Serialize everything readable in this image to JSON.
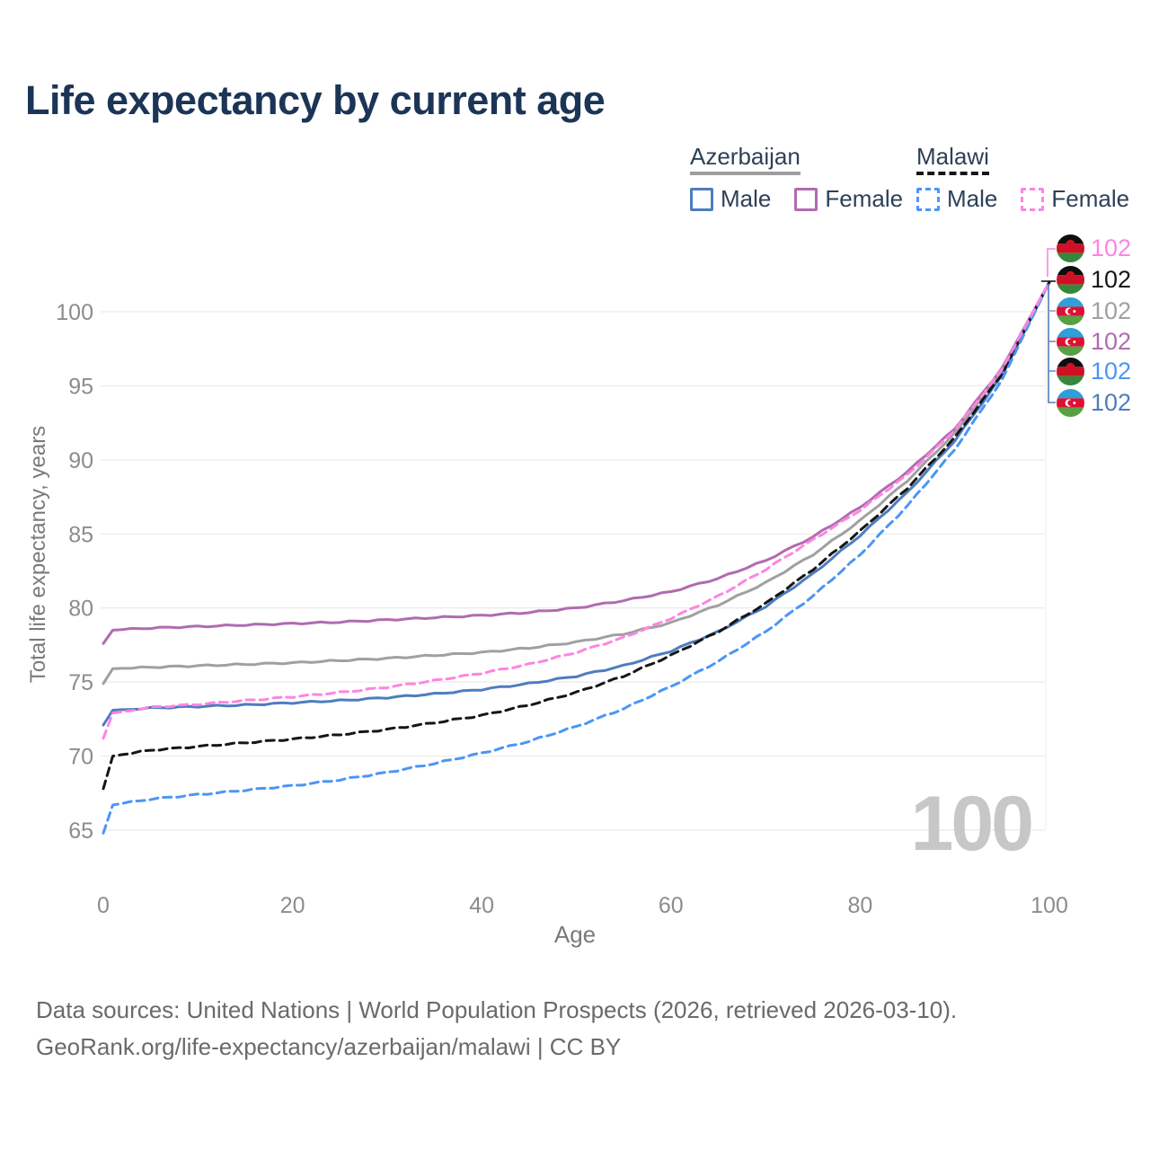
{
  "title": "Life expectancy by current age",
  "legend": {
    "groups": [
      {
        "label": "Azerbaijan",
        "line_style": "solid",
        "underline_color": "#9e9e9e",
        "items": [
          {
            "label": "Male",
            "color": "#4e7dbf",
            "dashed": false
          },
          {
            "label": "Female",
            "color": "#b16bb0",
            "dashed": false
          }
        ]
      },
      {
        "label": "Malawi",
        "line_style": "dashed",
        "underline_color": "#161616",
        "items": [
          {
            "label": "Male",
            "color": "#4b96f5",
            "dashed": true
          },
          {
            "label": "Female",
            "color": "#fc85e1",
            "dashed": true
          }
        ]
      }
    ]
  },
  "chart_data": {
    "type": "line",
    "title": "Life expectancy by current age",
    "xlabel": "Age",
    "ylabel": "Total life expectancy, years",
    "x_ticks": [
      0,
      20,
      40,
      60,
      80,
      100
    ],
    "y_ticks": [
      65,
      70,
      75,
      80,
      85,
      90,
      95,
      100
    ],
    "xlim": [
      0,
      100
    ],
    "ylim": [
      64,
      102.5
    ],
    "grid": "horizontal",
    "legend_position": "top-right",
    "watermark": "100",
    "x": [
      0,
      1,
      5,
      10,
      15,
      20,
      25,
      30,
      35,
      40,
      45,
      50,
      55,
      60,
      65,
      70,
      75,
      80,
      85,
      90,
      95,
      100
    ],
    "series": [
      {
        "name": "Azerbaijan",
        "country": "Azerbaijan",
        "sex": "Both",
        "color": "#a0a0a0",
        "dashed": false,
        "values": [
          74.9,
          75.9,
          76.0,
          76.1,
          76.2,
          76.3,
          76.45,
          76.6,
          76.8,
          77.0,
          77.3,
          77.7,
          78.25,
          79.0,
          80.2,
          81.7,
          83.6,
          85.9,
          88.6,
          91.8,
          96.0,
          102
        ]
      },
      {
        "name": "Azerbaijan Female",
        "country": "Azerbaijan",
        "sex": "Female",
        "color": "#b16bb0",
        "dashed": false,
        "values": [
          77.6,
          78.5,
          78.65,
          78.75,
          78.85,
          78.95,
          79.05,
          79.2,
          79.35,
          79.5,
          79.7,
          80.0,
          80.5,
          81.1,
          82.0,
          83.2,
          84.8,
          86.8,
          89.2,
          92.1,
          96.2,
          102
        ]
      },
      {
        "name": "Azerbaijan Male",
        "country": "Azerbaijan",
        "sex": "Male",
        "color": "#4e7dbf",
        "dashed": false,
        "values": [
          72.1,
          73.1,
          73.25,
          73.35,
          73.45,
          73.6,
          73.75,
          73.95,
          74.2,
          74.5,
          74.9,
          75.4,
          76.1,
          77.1,
          78.4,
          80.1,
          82.3,
          84.9,
          87.8,
          91.3,
          95.7,
          102
        ]
      },
      {
        "name": "Malawi",
        "country": "Malawi",
        "sex": "Both",
        "color": "#161616",
        "dashed": true,
        "values": [
          67.8,
          70.0,
          70.4,
          70.65,
          70.9,
          71.15,
          71.45,
          71.8,
          72.25,
          72.75,
          73.45,
          74.3,
          75.4,
          76.8,
          78.4,
          80.3,
          82.6,
          85.2,
          88.1,
          91.5,
          95.8,
          102
        ]
      },
      {
        "name": "Malawi Male",
        "country": "Malawi",
        "sex": "Male",
        "color": "#4b96f5",
        "dashed": true,
        "values": [
          64.8,
          66.7,
          67.1,
          67.4,
          67.7,
          68.0,
          68.4,
          68.9,
          69.5,
          70.2,
          71.0,
          72.0,
          73.2,
          74.7,
          76.4,
          78.4,
          80.8,
          83.6,
          86.9,
          90.7,
          95.4,
          102
        ]
      },
      {
        "name": "Malawi Female",
        "country": "Malawi",
        "sex": "Female",
        "color": "#fc85e1",
        "dashed": true,
        "values": [
          71.2,
          72.9,
          73.3,
          73.5,
          73.75,
          74.0,
          74.3,
          74.65,
          75.1,
          75.6,
          76.2,
          77.0,
          78.0,
          79.3,
          80.8,
          82.6,
          84.6,
          86.6,
          89.0,
          92.0,
          96.1,
          102
        ]
      }
    ]
  },
  "endpoint_labels": [
    {
      "series": "Malawi Female",
      "flag": "malawi",
      "value": "102",
      "color": "#fc85e1"
    },
    {
      "series": "Malawi",
      "flag": "malawi",
      "value": "102",
      "color": "#161616"
    },
    {
      "series": "Azerbaijan",
      "flag": "azerbaijan",
      "value": "102",
      "color": "#a0a0a0"
    },
    {
      "series": "Azerbaijan Female",
      "flag": "azerbaijan",
      "value": "102",
      "color": "#b16bb0"
    },
    {
      "series": "Malawi Male",
      "flag": "malawi",
      "value": "102",
      "color": "#4b96f5"
    },
    {
      "series": "Azerbaijan Male",
      "flag": "azerbaijan",
      "value": "102",
      "color": "#4e7dbf"
    }
  ],
  "footer": {
    "line1": "Data sources: United Nations | World Population Prospects (2026, retrieved 2026-03-10).",
    "line2": "GeoRank.org/life-expectancy/azerbaijan/malawi | CC BY"
  }
}
